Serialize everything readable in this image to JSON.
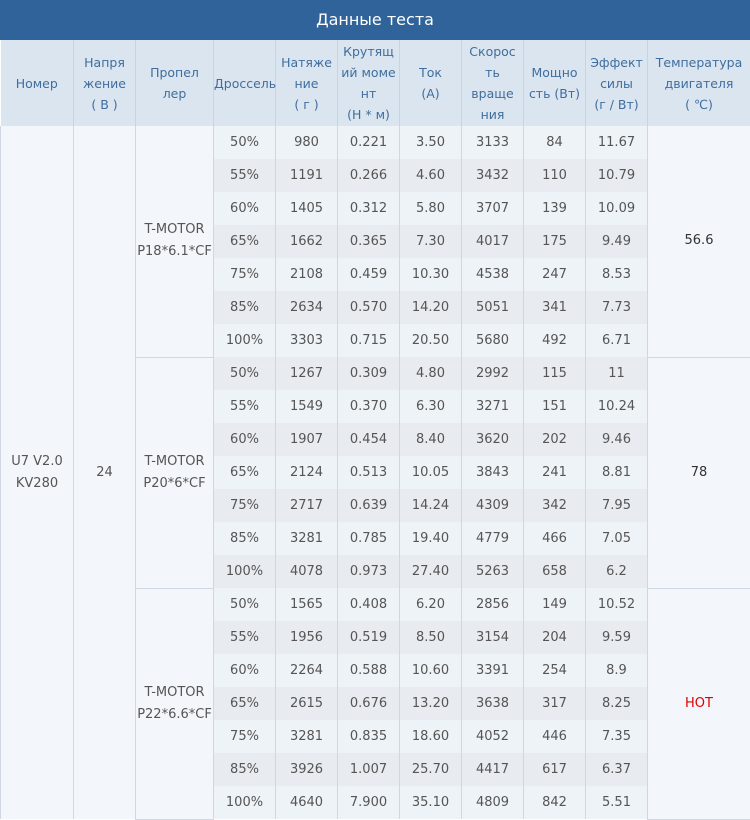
{
  "title": "Данные теста",
  "headers": [
    "Номер",
    "Напря\nжение\n( В )",
    "Пропел\nлер",
    "Дроссель",
    "Натяже\nние\n( г )",
    "Крутящ\nий моме\nнт\n(Н * м)",
    "Ток\n(A)",
    "Скорос\nть\nвраще\nния",
    "Мощно\nсть (Вт)",
    "Эффект\nсилы\n(г / Вт)",
    "Температура\nдвигателя\n( ℃)"
  ],
  "motor": "U7 V2.0\nKV280",
  "voltage": "24",
  "colors": {
    "title_bg": "#2f6399",
    "header_bg": "#dbe5f0",
    "hot": "#e00000"
  },
  "groups": [
    {
      "propeller": "T-MOTOR\nP18*6.1*CF",
      "temperature": "56.6",
      "rows": [
        [
          "50%",
          "980",
          "0.221",
          "3.50",
          "3133",
          "84",
          "11.67"
        ],
        [
          "55%",
          "1191",
          "0.266",
          "4.60",
          "3432",
          "110",
          "10.79"
        ],
        [
          "60%",
          "1405",
          "0.312",
          "5.80",
          "3707",
          "139",
          "10.09"
        ],
        [
          "65%",
          "1662",
          "0.365",
          "7.30",
          "4017",
          "175",
          "9.49"
        ],
        [
          "75%",
          "2108",
          "0.459",
          "10.30",
          "4538",
          "247",
          "8.53"
        ],
        [
          "85%",
          "2634",
          "0.570",
          "14.20",
          "5051",
          "341",
          "7.73"
        ],
        [
          "100%",
          "3303",
          "0.715",
          "20.50",
          "5680",
          "492",
          "6.71"
        ]
      ]
    },
    {
      "propeller": "T-MOTOR\nP20*6*CF",
      "temperature": "78",
      "rows": [
        [
          "50%",
          "1267",
          "0.309",
          "4.80",
          "2992",
          "115",
          "11"
        ],
        [
          "55%",
          "1549",
          "0.370",
          "6.30",
          "3271",
          "151",
          "10.24"
        ],
        [
          "60%",
          "1907",
          "0.454",
          "8.40",
          "3620",
          "202",
          "9.46"
        ],
        [
          "65%",
          "2124",
          "0.513",
          "10.05",
          "3843",
          "241",
          "8.81"
        ],
        [
          "75%",
          "2717",
          "0.639",
          "14.24",
          "4309",
          "342",
          "7.95"
        ],
        [
          "85%",
          "3281",
          "0.785",
          "19.40",
          "4779",
          "466",
          "7.05"
        ],
        [
          "100%",
          "4078",
          "0.973",
          "27.40",
          "5263",
          "658",
          "6.2"
        ]
      ]
    },
    {
      "propeller": "T-MOTOR\nP22*6.6*CF",
      "temperature": "HOT",
      "rows": [
        [
          "50%",
          "1565",
          "0.408",
          "6.20",
          "2856",
          "149",
          "10.52"
        ],
        [
          "55%",
          "1956",
          "0.519",
          "8.50",
          "3154",
          "204",
          "9.59"
        ],
        [
          "60%",
          "2264",
          "0.588",
          "10.60",
          "3391",
          "254",
          "8.9"
        ],
        [
          "65%",
          "2615",
          "0.676",
          "13.20",
          "3638",
          "317",
          "8.25"
        ],
        [
          "75%",
          "3281",
          "0.835",
          "18.60",
          "4052",
          "446",
          "7.35"
        ],
        [
          "85%",
          "3926",
          "1.007",
          "25.70",
          "4417",
          "617",
          "6.37"
        ],
        [
          "100%",
          "4640",
          "7.900",
          "35.10",
          "4809",
          "842",
          "5.51"
        ]
      ]
    }
  ]
}
